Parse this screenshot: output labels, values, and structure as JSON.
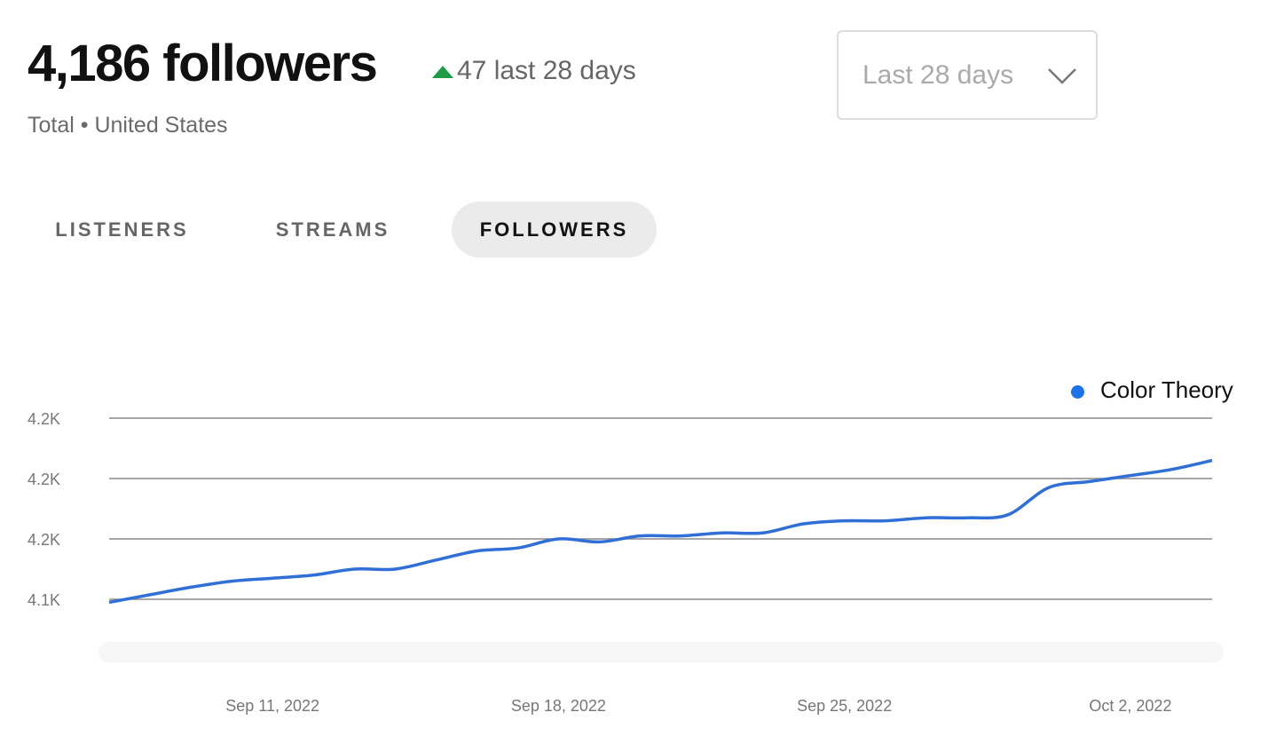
{
  "header": {
    "count": "4,186 followers",
    "delta": "47 last 28 days",
    "subtitle": "Total • United States",
    "up_color": "#1e9b45"
  },
  "range_select": {
    "value": "Last 28 days"
  },
  "tabs": [
    {
      "label": "LISTENERS",
      "active": false
    },
    {
      "label": "STREAMS",
      "active": false
    },
    {
      "label": "FOLLOWERS",
      "active": true
    }
  ],
  "chart_data": {
    "type": "line",
    "title": "",
    "xlabel": "",
    "ylabel": "",
    "ylim": [
      4140,
      4200
    ],
    "yticks": [
      4140,
      4160,
      4180,
      4200
    ],
    "ytick_labels": [
      "4.1K",
      "4.2K",
      "4.2K",
      "4.2K"
    ],
    "xtick_labels": [
      "Sep 11, 2022",
      "Sep 18, 2022",
      "Sep 25, 2022",
      "Oct 2, 2022"
    ],
    "xtick_index": [
      4,
      11,
      18,
      25
    ],
    "x": [
      "Sep 7",
      "Sep 8",
      "Sep 9",
      "Sep 10",
      "Sep 11",
      "Sep 12",
      "Sep 13",
      "Sep 14",
      "Sep 15",
      "Sep 16",
      "Sep 17",
      "Sep 18",
      "Sep 19",
      "Sep 20",
      "Sep 21",
      "Sep 22",
      "Sep 23",
      "Sep 24",
      "Sep 25",
      "Sep 26",
      "Sep 27",
      "Sep 28",
      "Sep 29",
      "Sep 30",
      "Oct 1",
      "Oct 2",
      "Oct 3",
      "Oct 4"
    ],
    "grid": true,
    "legend": "top-right",
    "series": [
      {
        "name": "Color Theory",
        "color": "#2f6fd6",
        "values": [
          4139,
          4141.5,
          4144,
          4146,
          4147,
          4148,
          4150,
          4150,
          4153,
          4156,
          4157,
          4160,
          4159,
          4161,
          4161,
          4162,
          4162,
          4165,
          4166,
          4166,
          4167,
          4167,
          4168,
          4177,
          4179,
          4181,
          4183,
          4186
        ]
      }
    ]
  }
}
